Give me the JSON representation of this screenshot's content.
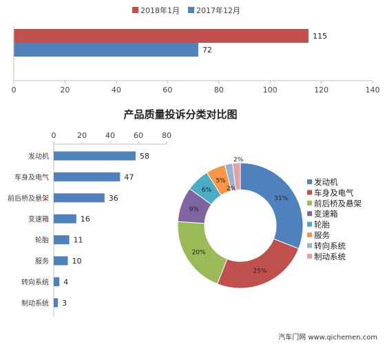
{
  "footer": "汽车门网 www.qichemen.com",
  "chart_data": [
    {
      "type": "bar",
      "orientation": "horizontal",
      "title": "",
      "series": [
        {
          "name": "2018年1月",
          "values": [
            115
          ],
          "color": "#c0504d"
        },
        {
          "name": "2017年12月",
          "values": [
            72
          ],
          "color": "#4f81bd"
        }
      ],
      "xlim": [
        0,
        140
      ],
      "xticks": [
        0,
        20,
        40,
        60,
        80,
        100,
        120,
        140
      ],
      "legend_position": "top"
    },
    {
      "type": "bar",
      "orientation": "horizontal",
      "title": "产品质量投诉分类对比图",
      "categories": [
        "发动机",
        "车身及电气",
        "前后桥及悬架",
        "变速箱",
        "轮胎",
        "服务",
        "转向系统",
        "制动系统"
      ],
      "values": [
        58,
        47,
        36,
        16,
        11,
        10,
        4,
        3
      ],
      "color": "#4f81bd",
      "xlim": [
        0,
        80
      ],
      "xticks": [
        0,
        20,
        40,
        60,
        80
      ],
      "axis_position": "top"
    },
    {
      "type": "pie",
      "donut": true,
      "categories": [
        "发动机",
        "车身及电气",
        "前后桥及悬架",
        "变速箱",
        "轮胎",
        "服务",
        "转向系统",
        "制动系统"
      ],
      "values": [
        31,
        25,
        20,
        9,
        6,
        5,
        2,
        2
      ],
      "labels": [
        "31%",
        "25%",
        "20%",
        "9%",
        "6%",
        "5%",
        "2%",
        "2%"
      ],
      "colors": [
        "#4f81bd",
        "#c0504d",
        "#9bbb59",
        "#8064a2",
        "#4bacc6",
        "#f79646",
        "#95b3d7",
        "#e6a09e"
      ],
      "legend_position": "right"
    }
  ]
}
